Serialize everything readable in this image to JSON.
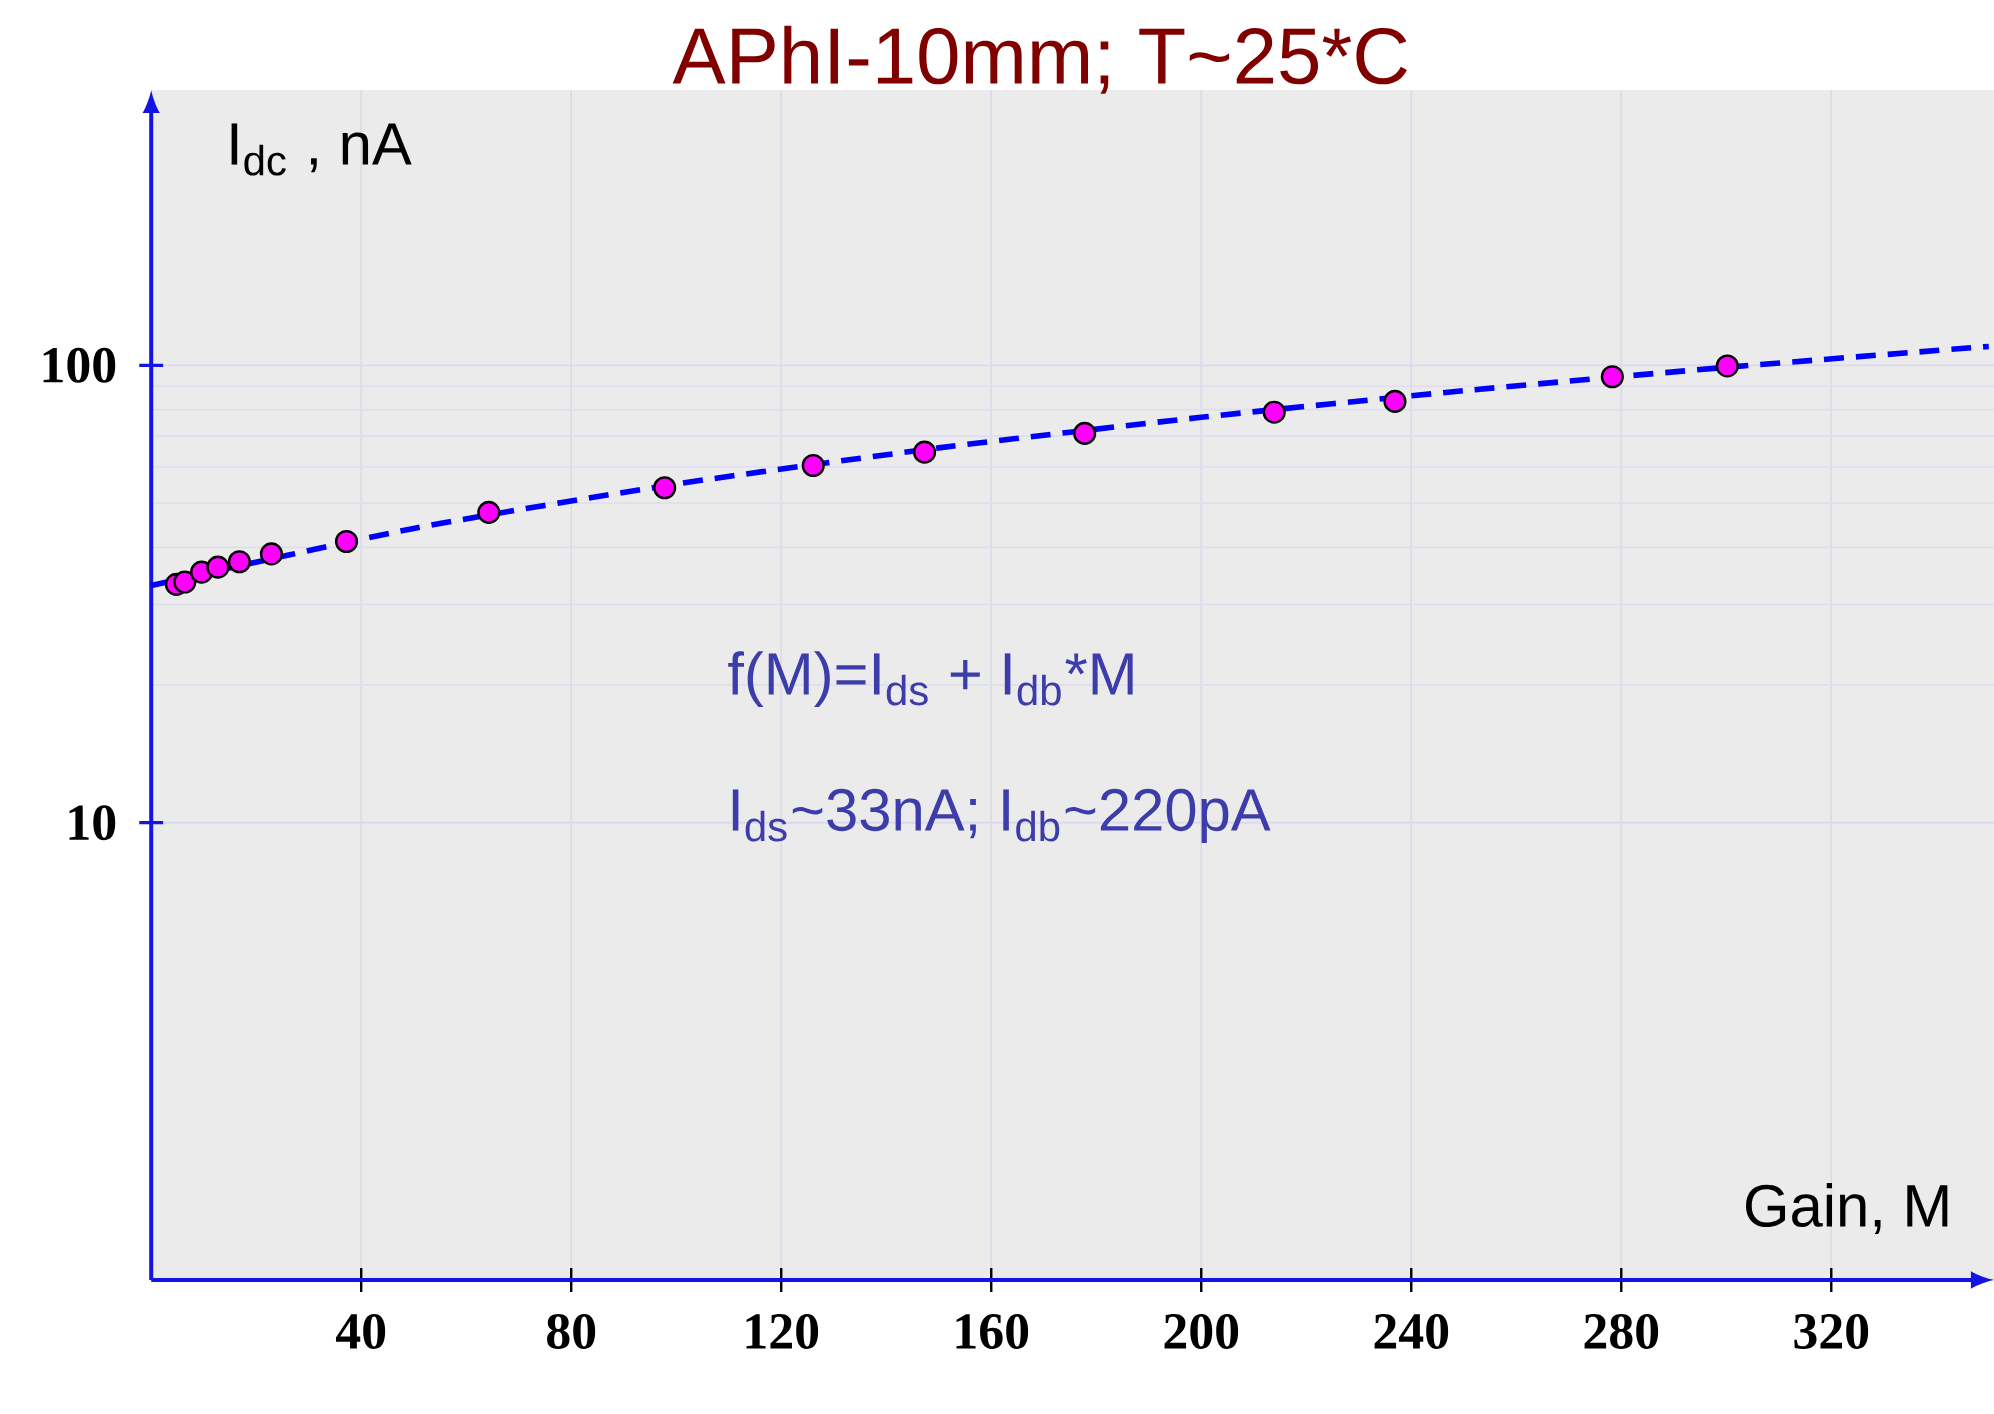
{
  "chart_data": {
    "type": "scatter",
    "title": "APhI-10mm; T~25*C",
    "xlabel": "Gain, M",
    "ylabel": "I$_{dc}$ , nA",
    "annotations": [
      "f(M)=I$_{ds}$ + I$_{db}$*M",
      "I$_{ds}$~33nA; I$_{db}$~220pA"
    ],
    "log": "y",
    "grid": true,
    "xlim": [
      0,
      351
    ],
    "ylim": [
      1,
      400
    ],
    "xticks": [
      40,
      80,
      120,
      160,
      200,
      240,
      280,
      320
    ],
    "yticks": [
      10,
      100
    ],
    "series": [
      {
        "color": "#ff00ff",
        "marker": "circle",
        "x": [
          4.8,
          6.4,
          9.6,
          12.7,
          16.8,
          22.9,
          37.2,
          64.3,
          97.8,
          126.1,
          147.3,
          177.8,
          213.9,
          236.9,
          278.3,
          300.2
        ],
        "values": [
          33.2,
          33.6,
          35.3,
          36.2,
          37.2,
          38.7,
          41.2,
          47.7,
          54.0,
          60.4,
          64.6,
          71.0,
          79.0,
          83.4,
          94.4,
          99.7
        ]
      },
      {
        "type": "line",
        "color": "#0000ff",
        "marker": "none",
        "line_style": "dashed",
        "x": [
          0,
          50,
          100,
          150,
          200,
          250,
          300,
          350
        ],
        "values": [
          33,
          44,
          55,
          66,
          77,
          88,
          99,
          110
        ]
      }
    ]
  }
}
